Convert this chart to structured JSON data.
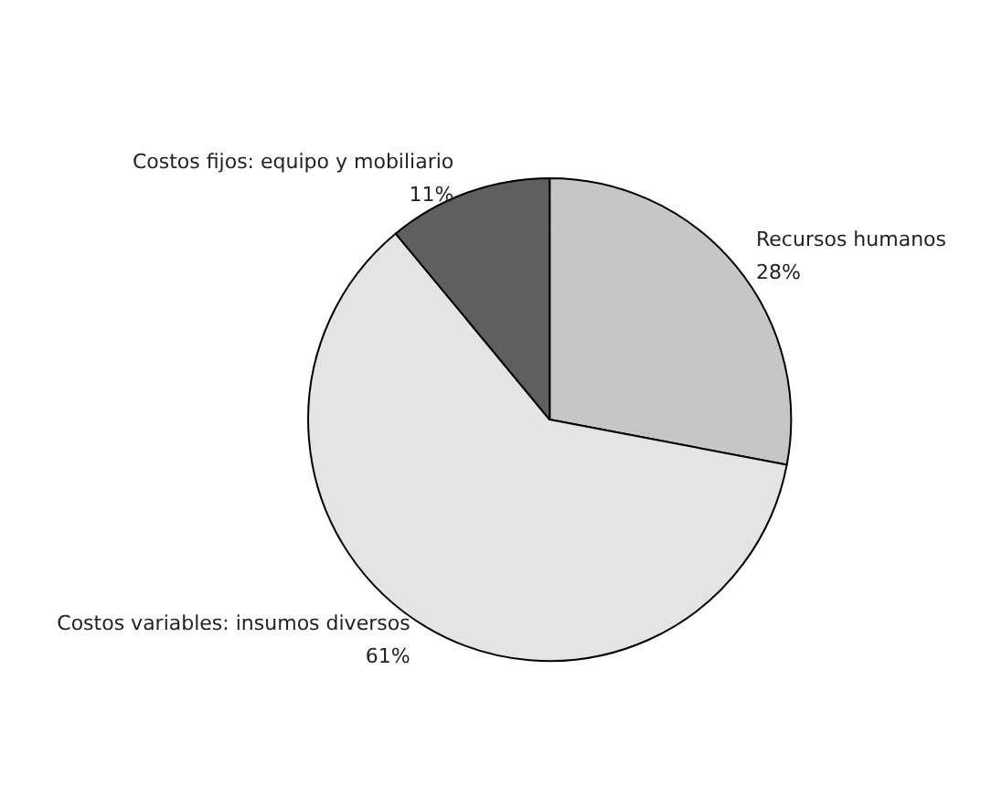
{
  "chart_data": {
    "type": "pie",
    "categories": [
      "Recursos humanos",
      "Costos variables: insumos diversos",
      "Costos fijos: equipo y mobiliario"
    ],
    "values": [
      28,
      61,
      11
    ],
    "colors": [
      "#c6c6c6",
      "#e4e4e4",
      "#5f5f5f"
    ],
    "value_labels": [
      "28%",
      "61%",
      "11%"
    ]
  }
}
